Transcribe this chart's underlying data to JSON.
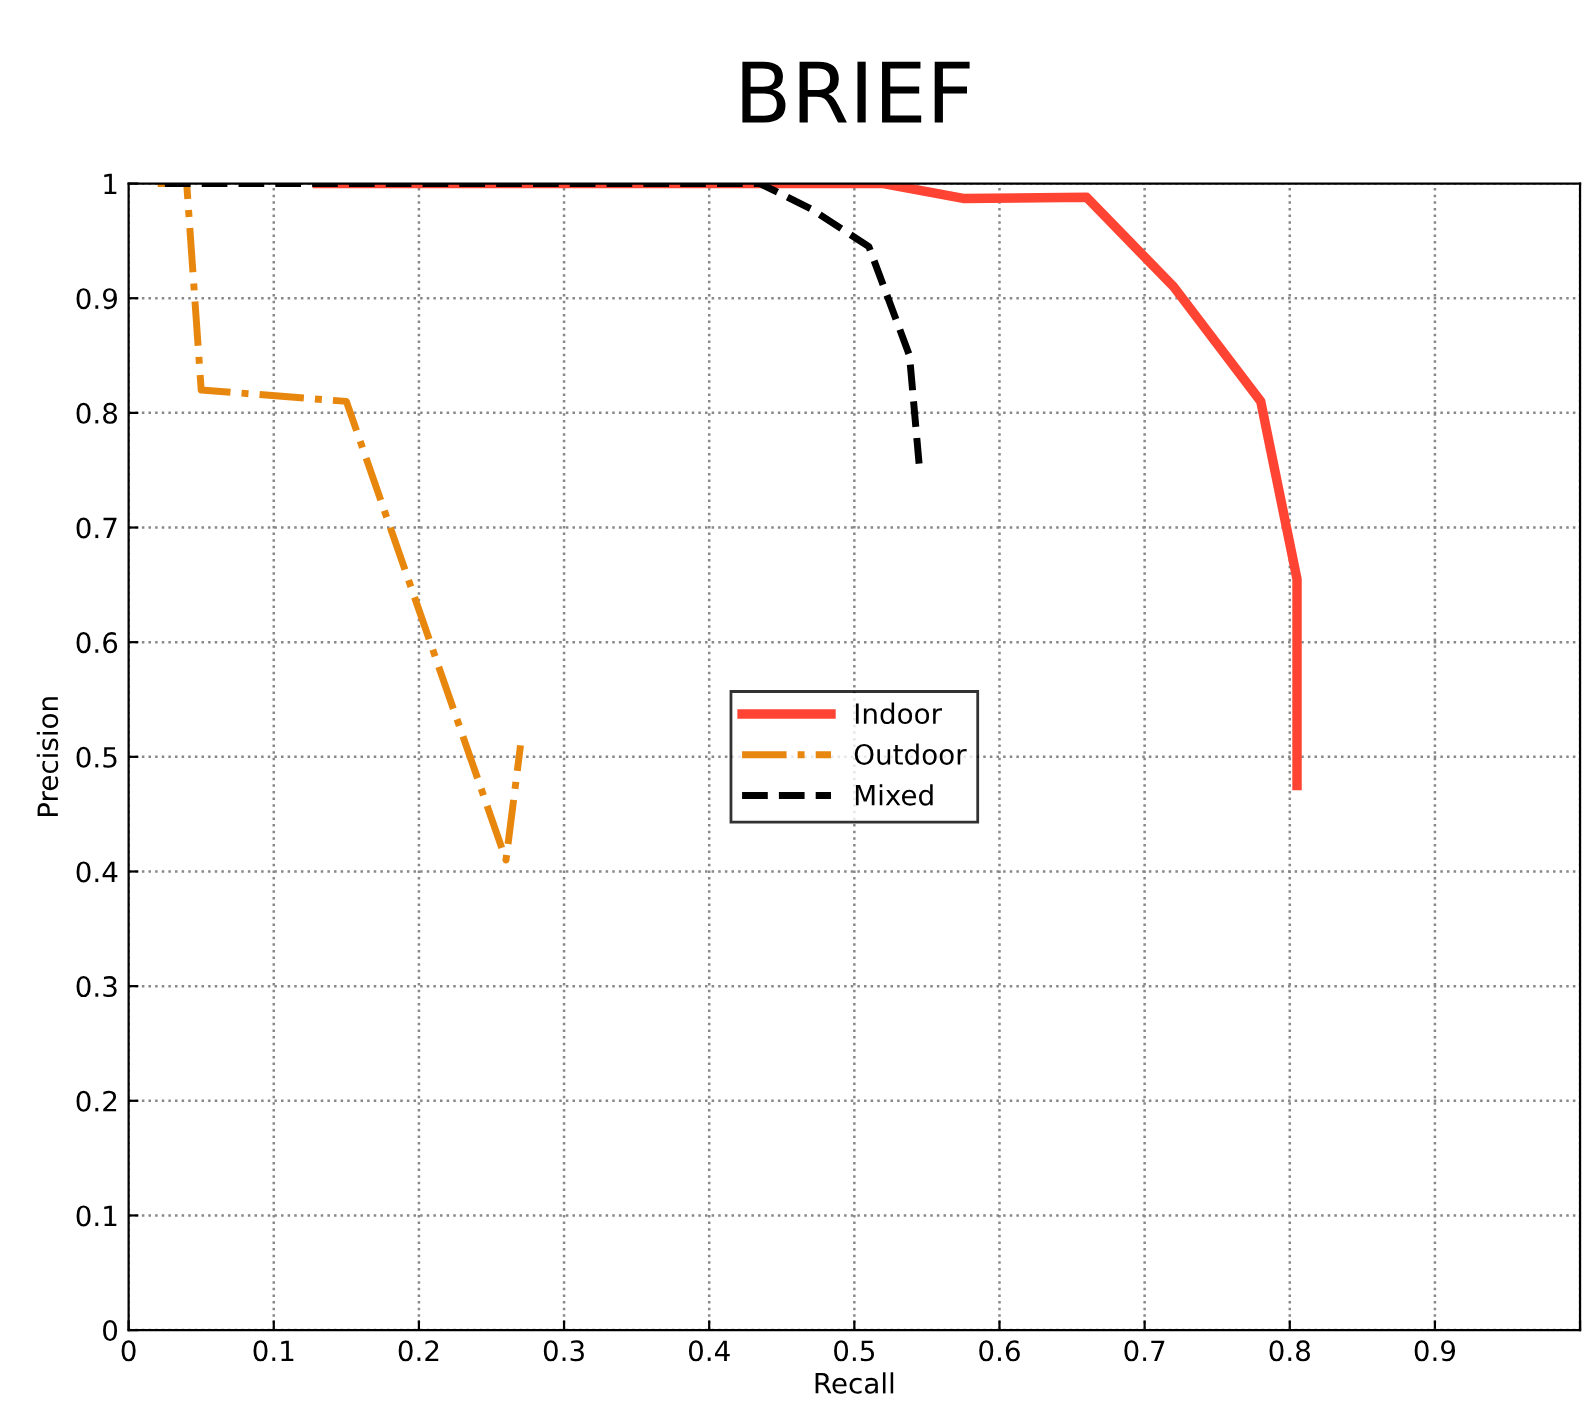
{
  "chart_data": {
    "type": "line",
    "title": "BRIEF",
    "xlabel": "Recall",
    "ylabel": "Precision",
    "xlim": [
      0,
      1
    ],
    "ylim": [
      0,
      1
    ],
    "xticks": [
      0,
      0.1,
      0.2,
      0.3,
      0.4,
      0.5,
      0.6,
      0.7,
      0.8,
      0.9,
      {
        "value": 1,
        "label": null
      }
    ],
    "yticks": [
      0,
      0.1,
      0.2,
      0.3,
      0.4,
      0.5,
      0.6,
      0.7,
      0.8,
      0.9,
      1
    ],
    "grid": true,
    "legend": "center",
    "marker": "none",
    "series": [
      {
        "name": "Indoor",
        "color": "#ff4433",
        "line_style": "solid",
        "x": [
          0.13,
          0.52,
          0.575,
          0.66,
          0.72,
          0.78,
          0.805,
          0.805
        ],
        "values": [
          1,
          1,
          0.987,
          0.988,
          0.91,
          0.81,
          0.655,
          0.475
        ]
      },
      {
        "name": "Outdoor",
        "color": "#e8870e",
        "line_style": "dashdot",
        "x": [
          0.02,
          0.04,
          0.05,
          0.15,
          0.26,
          0.27
        ],
        "values": [
          1,
          1,
          0.82,
          0.81,
          0.41,
          0.51
        ]
      },
      {
        "name": "Mixed",
        "color": "#000000",
        "line_style": "dashed",
        "x": [
          0.025,
          0.435,
          0.47,
          0.51,
          0.538,
          0.545
        ],
        "values": [
          1,
          1,
          0.978,
          0.945,
          0.85,
          0.75
        ]
      }
    ]
  }
}
